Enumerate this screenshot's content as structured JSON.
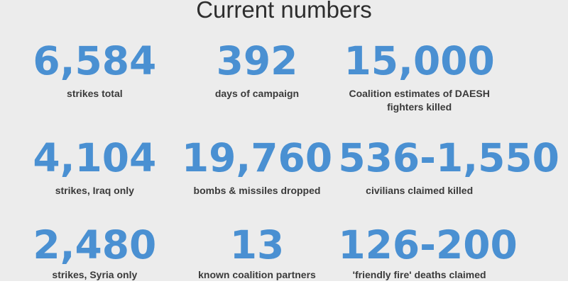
{
  "colors": {
    "background": "#ececec",
    "bottom_strip": "#ffffff",
    "number_blue": "#4a90d2",
    "title_text": "#2e2e2e",
    "label_text": "#3a3a3a"
  },
  "chart_data": {
    "type": "table",
    "title": "Current numbers",
    "layout": "3x3 grid of big-number stat tiles, gray background, no axes or gridlines",
    "tiles": [
      {
        "value": "6,584",
        "value_numeric": 6584,
        "label": "strikes total"
      },
      {
        "value": "392",
        "value_numeric": 392,
        "label": "days of campaign"
      },
      {
        "value": "15,000",
        "value_numeric": 15000,
        "label": "Coalition estimates of DAESH fighters killed"
      },
      {
        "value": "4,104",
        "value_numeric": 4104,
        "label": "strikes, Iraq only"
      },
      {
        "value": "19,760",
        "value_numeric": 19760,
        "label": "bombs & missiles dropped"
      },
      {
        "value": "536-1,550",
        "value_range": {
          "min": 536,
          "max": 1550
        },
        "label": "civilians claimed killed"
      },
      {
        "value": "2,480",
        "value_numeric": 2480,
        "label": "strikes, Syria only"
      },
      {
        "value": "13",
        "value_numeric": 13,
        "label": "known coalition partners"
      },
      {
        "value": "126-200",
        "value_range": {
          "min": 126,
          "max": 200
        },
        "label": "'friendly fire' deaths claimed"
      }
    ]
  }
}
